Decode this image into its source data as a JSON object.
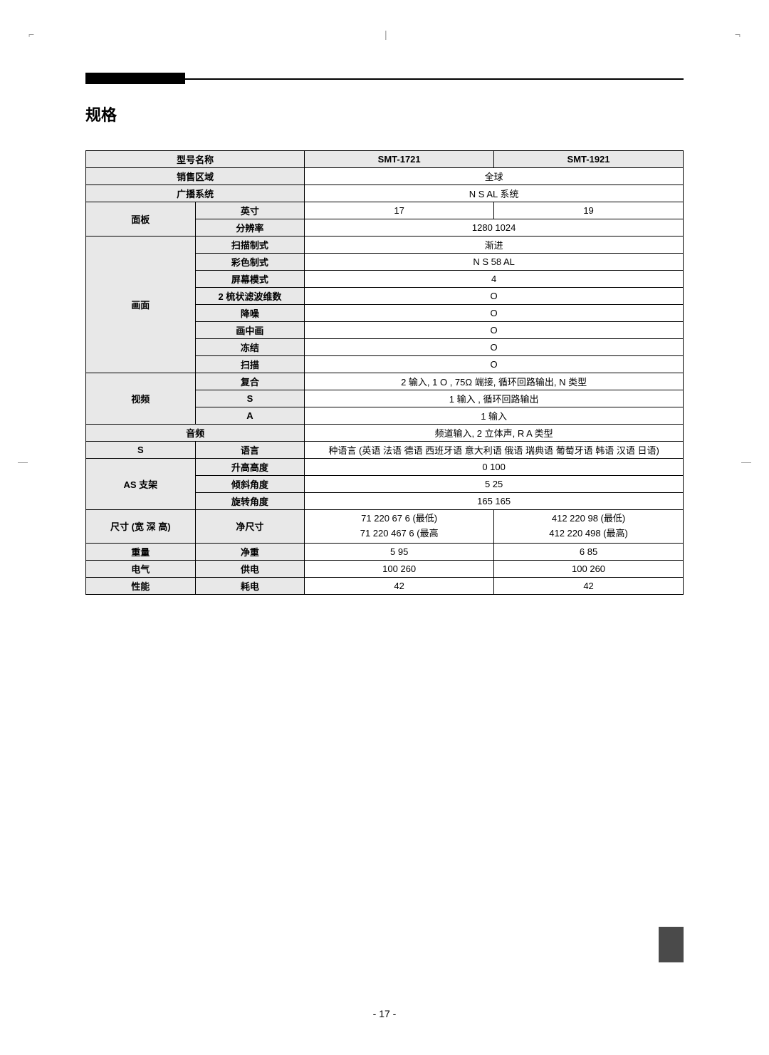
{
  "crop_marks": {
    "tl": "⌐",
    "tr": "¬",
    "tc": "|",
    "ml": "—",
    "mr": "—"
  },
  "title": "规格",
  "page_number": "- 17 -",
  "columns": {
    "model_label": "型号名称",
    "model1": "SMT-1721",
    "model2": "SMT-1921"
  },
  "rows": {
    "sales_region": {
      "label": "销售区域",
      "value": "全球"
    },
    "broadcast_system": {
      "label": "广播系统",
      "value": "N S    AL 系统"
    },
    "panel": {
      "label": "面板",
      "inch_label": "英寸",
      "inch1": "17",
      "inch2": "19",
      "resolution_label": "分辨率",
      "resolution": "1280   1024"
    },
    "picture": {
      "label": "画面",
      "scan_label": "扫描制式",
      "scan": "渐进",
      "color_label": "彩色制式",
      "color": "N S    58  AL",
      "screen_mode_label": "屏幕模式",
      "screen_mode": "4",
      "comb_filter_label": "2   梳状滤波维数",
      "comb_filter": "O",
      "noise_reduction_label": "降噪",
      "noise_reduction": "O",
      "pip_label": "画中画",
      "pip": "O",
      "freeze_label": "冻结",
      "freeze": "O",
      "scan2_label": "扫描",
      "scan2": "O"
    },
    "video": {
      "label": "视频",
      "composite_label": "复合",
      "composite": "2    输入, 1 O    , 75Ω 端接, 循环回路输出,   N   类型",
      "s_label": "S",
      "s": "1    输入     , 循环回路输出",
      "a_label": "A",
      "a": "1    输入"
    },
    "audio": {
      "label": "音频",
      "value": "频道输入, 2   立体声, R  A 类型"
    },
    "osd": {
      "s_label": "S",
      "language_label": "语言",
      "language": " 种语言 (英语 法语 德语 西班牙语 意大利语 俄语 瑞典语 葡萄牙语 韩语 汉语 日语)"
    },
    "as_stand": {
      "label": "AS 支架",
      "height_label": "升高高度",
      "height": "0    100",
      "tilt_label": "倾斜角度",
      "tilt": "5    25",
      "swivel_label": "旋转角度",
      "swivel": "165    165"
    },
    "dimension": {
      "label": "尺寸 (宽 深 高)",
      "net_label": "净尺寸",
      "net1_line1": "71     220     67 6    (最低)",
      "net1_line2": "71     220     467 6    (最高",
      "net2_line1": "412    220      98    (最低)",
      "net2_line2": "412    220     498    (最高)"
    },
    "weight": {
      "label": "重量",
      "net_label": "净重",
      "net1": "5 95",
      "net2": "6 85"
    },
    "electrical": {
      "label": "电气",
      "power_supply_label": "供电",
      "power_supply1": "100    260",
      "power_supply2": "100    260"
    },
    "performance": {
      "label": "性能",
      "power_label": "耗电",
      "power1": "42",
      "power2": "42"
    }
  }
}
